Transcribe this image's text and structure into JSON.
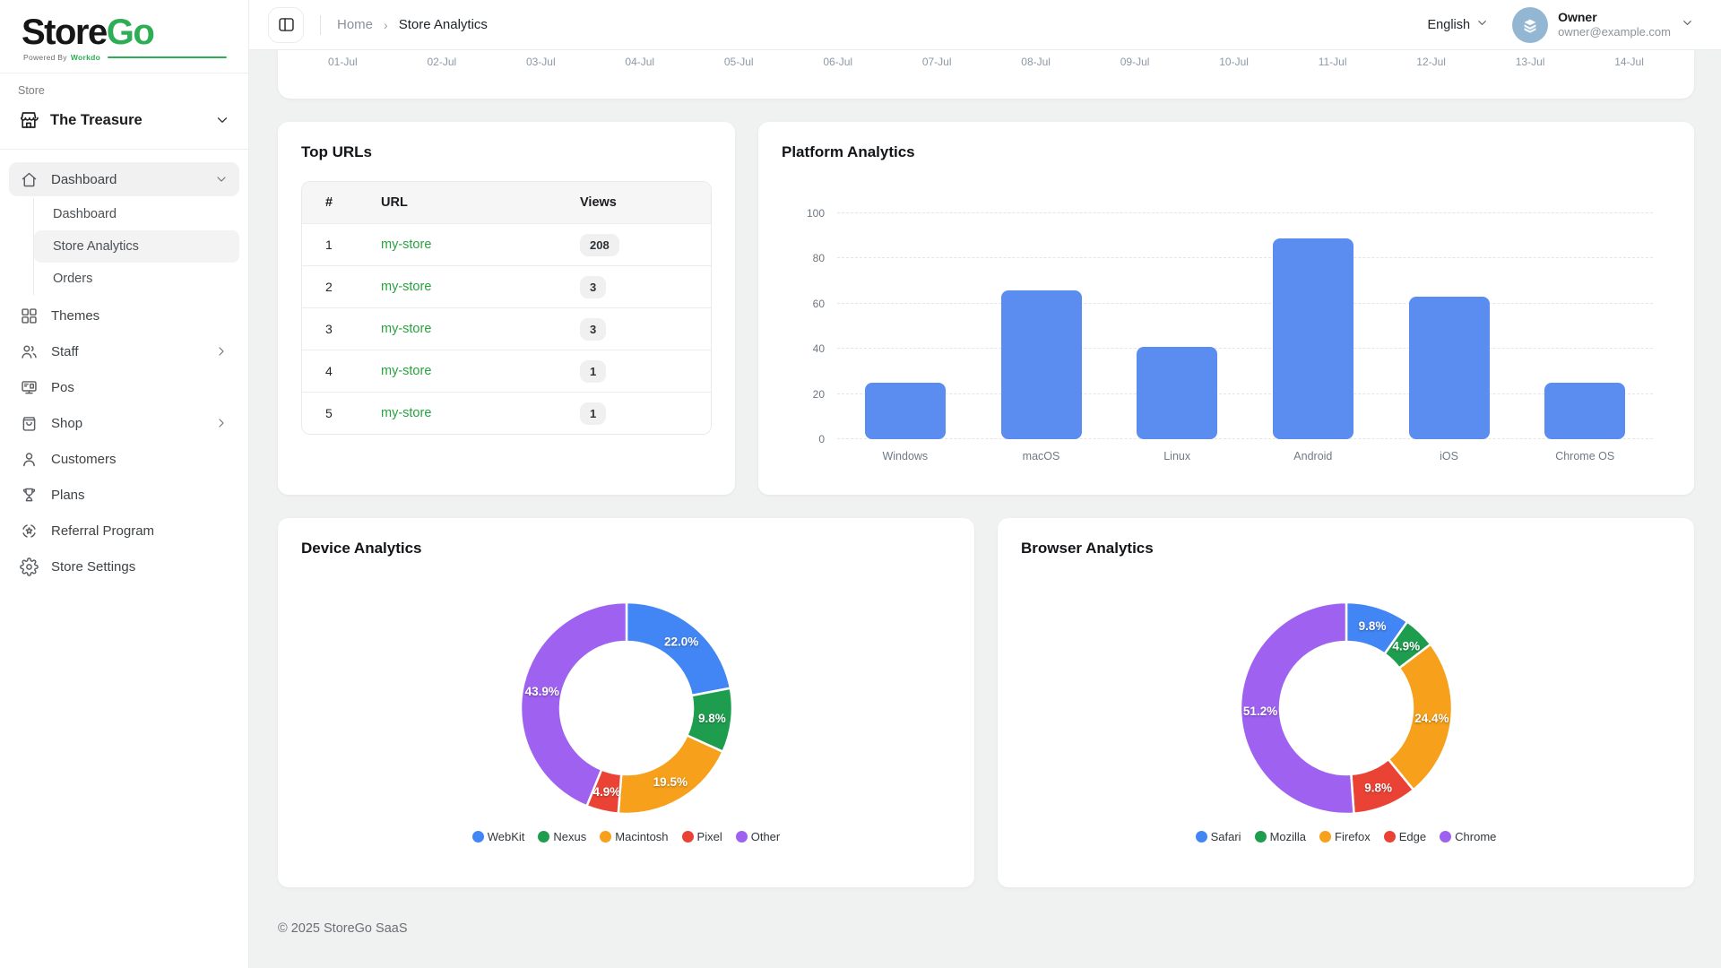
{
  "app": {
    "brand_store": "Store",
    "brand_go": "Go",
    "powered_by": "Powered By",
    "powered_brand": "Workdo",
    "footer": "© 2025 StoreGo SaaS"
  },
  "colors": {
    "accent_green": "#2eae54",
    "link_green": "#27a33e",
    "bar_blue": "#5b8cf0",
    "pie_blue": "#4285f4",
    "pie_green": "#1f9d4f",
    "pie_orange": "#f6a01b",
    "pie_red": "#ea4335",
    "pie_purple": "#9e61f0",
    "avatar_bg": "#93b7d2"
  },
  "sidebar": {
    "section_label": "Store",
    "store_name": "The Treasure",
    "items": [
      {
        "label": "Dashboard",
        "icon": "home-icon",
        "active": true,
        "expanded": true,
        "children": [
          {
            "label": "Dashboard",
            "active": false
          },
          {
            "label": "Store Analytics",
            "active": true
          },
          {
            "label": "Orders",
            "active": false
          }
        ]
      },
      {
        "label": "Themes",
        "icon": "grid-icon"
      },
      {
        "label": "Staff",
        "icon": "users-icon",
        "chevron": true
      },
      {
        "label": "Pos",
        "icon": "pos-icon"
      },
      {
        "label": "Shop",
        "icon": "bag-icon",
        "chevron": true
      },
      {
        "label": "Customers",
        "icon": "user-icon"
      },
      {
        "label": "Plans",
        "icon": "trophy-icon"
      },
      {
        "label": "Referral Program",
        "icon": "referral-icon"
      },
      {
        "label": "Store Settings",
        "icon": "gear-icon"
      }
    ]
  },
  "header": {
    "breadcrumb": {
      "home": "Home",
      "current": "Store Analytics"
    },
    "language": "English",
    "user": {
      "name": "Owner",
      "email": "owner@example.com"
    }
  },
  "top_axis_chart": {
    "dates": [
      "01-Jul",
      "02-Jul",
      "03-Jul",
      "04-Jul",
      "05-Jul",
      "06-Jul",
      "07-Jul",
      "08-Jul",
      "09-Jul",
      "10-Jul",
      "11-Jul",
      "12-Jul",
      "13-Jul",
      "14-Jul"
    ]
  },
  "top_urls": {
    "title": "Top URLs",
    "columns": [
      "#",
      "URL",
      "Views"
    ],
    "rows": [
      {
        "rank": "1",
        "url": "my-store",
        "views": "208"
      },
      {
        "rank": "2",
        "url": "my-store",
        "views": "3"
      },
      {
        "rank": "3",
        "url": "my-store",
        "views": "3"
      },
      {
        "rank": "4",
        "url": "my-store",
        "views": "1"
      },
      {
        "rank": "5",
        "url": "my-store",
        "views": "1"
      }
    ]
  },
  "chart_data": [
    {
      "type": "bar",
      "title": "Platform Analytics",
      "categories": [
        "Windows",
        "macOS",
        "Linux",
        "Android",
        "iOS",
        "Chrome OS"
      ],
      "values": [
        25,
        66,
        41,
        89,
        63,
        25
      ],
      "xlabel": "",
      "ylabel": "",
      "ylim": [
        0,
        100
      ],
      "yticks": [
        0,
        20,
        40,
        60,
        80,
        100
      ],
      "grid": "dashed horizontal",
      "bar_color": "#5b8cf0",
      "legend": "none"
    },
    {
      "type": "pie",
      "title": "Device Analytics",
      "labels": [
        "WebKit",
        "Nexus",
        "Macintosh",
        "Pixel",
        "Other"
      ],
      "values": [
        22.0,
        9.8,
        19.5,
        4.9,
        43.9
      ],
      "colors": [
        "#4285f4",
        "#1f9d4f",
        "#f6a01b",
        "#ea4335",
        "#9e61f0"
      ],
      "donut": true,
      "legend_position": "bottom",
      "data_labels": [
        "22.0%",
        "9.8%",
        "19.5%",
        "4.9%",
        "43.9%"
      ]
    },
    {
      "type": "pie",
      "title": "Browser Analytics",
      "labels": [
        "Safari",
        "Mozilla",
        "Firefox",
        "Edge",
        "Chrome"
      ],
      "values": [
        9.8,
        4.9,
        24.4,
        9.8,
        51.2
      ],
      "colors": [
        "#4285f4",
        "#1f9d4f",
        "#f6a01b",
        "#ea4335",
        "#9e61f0"
      ],
      "donut": true,
      "legend_position": "bottom",
      "data_labels": [
        "9.8%",
        "4.9%",
        "24.4%",
        "9.8%",
        "51.2%"
      ]
    }
  ]
}
